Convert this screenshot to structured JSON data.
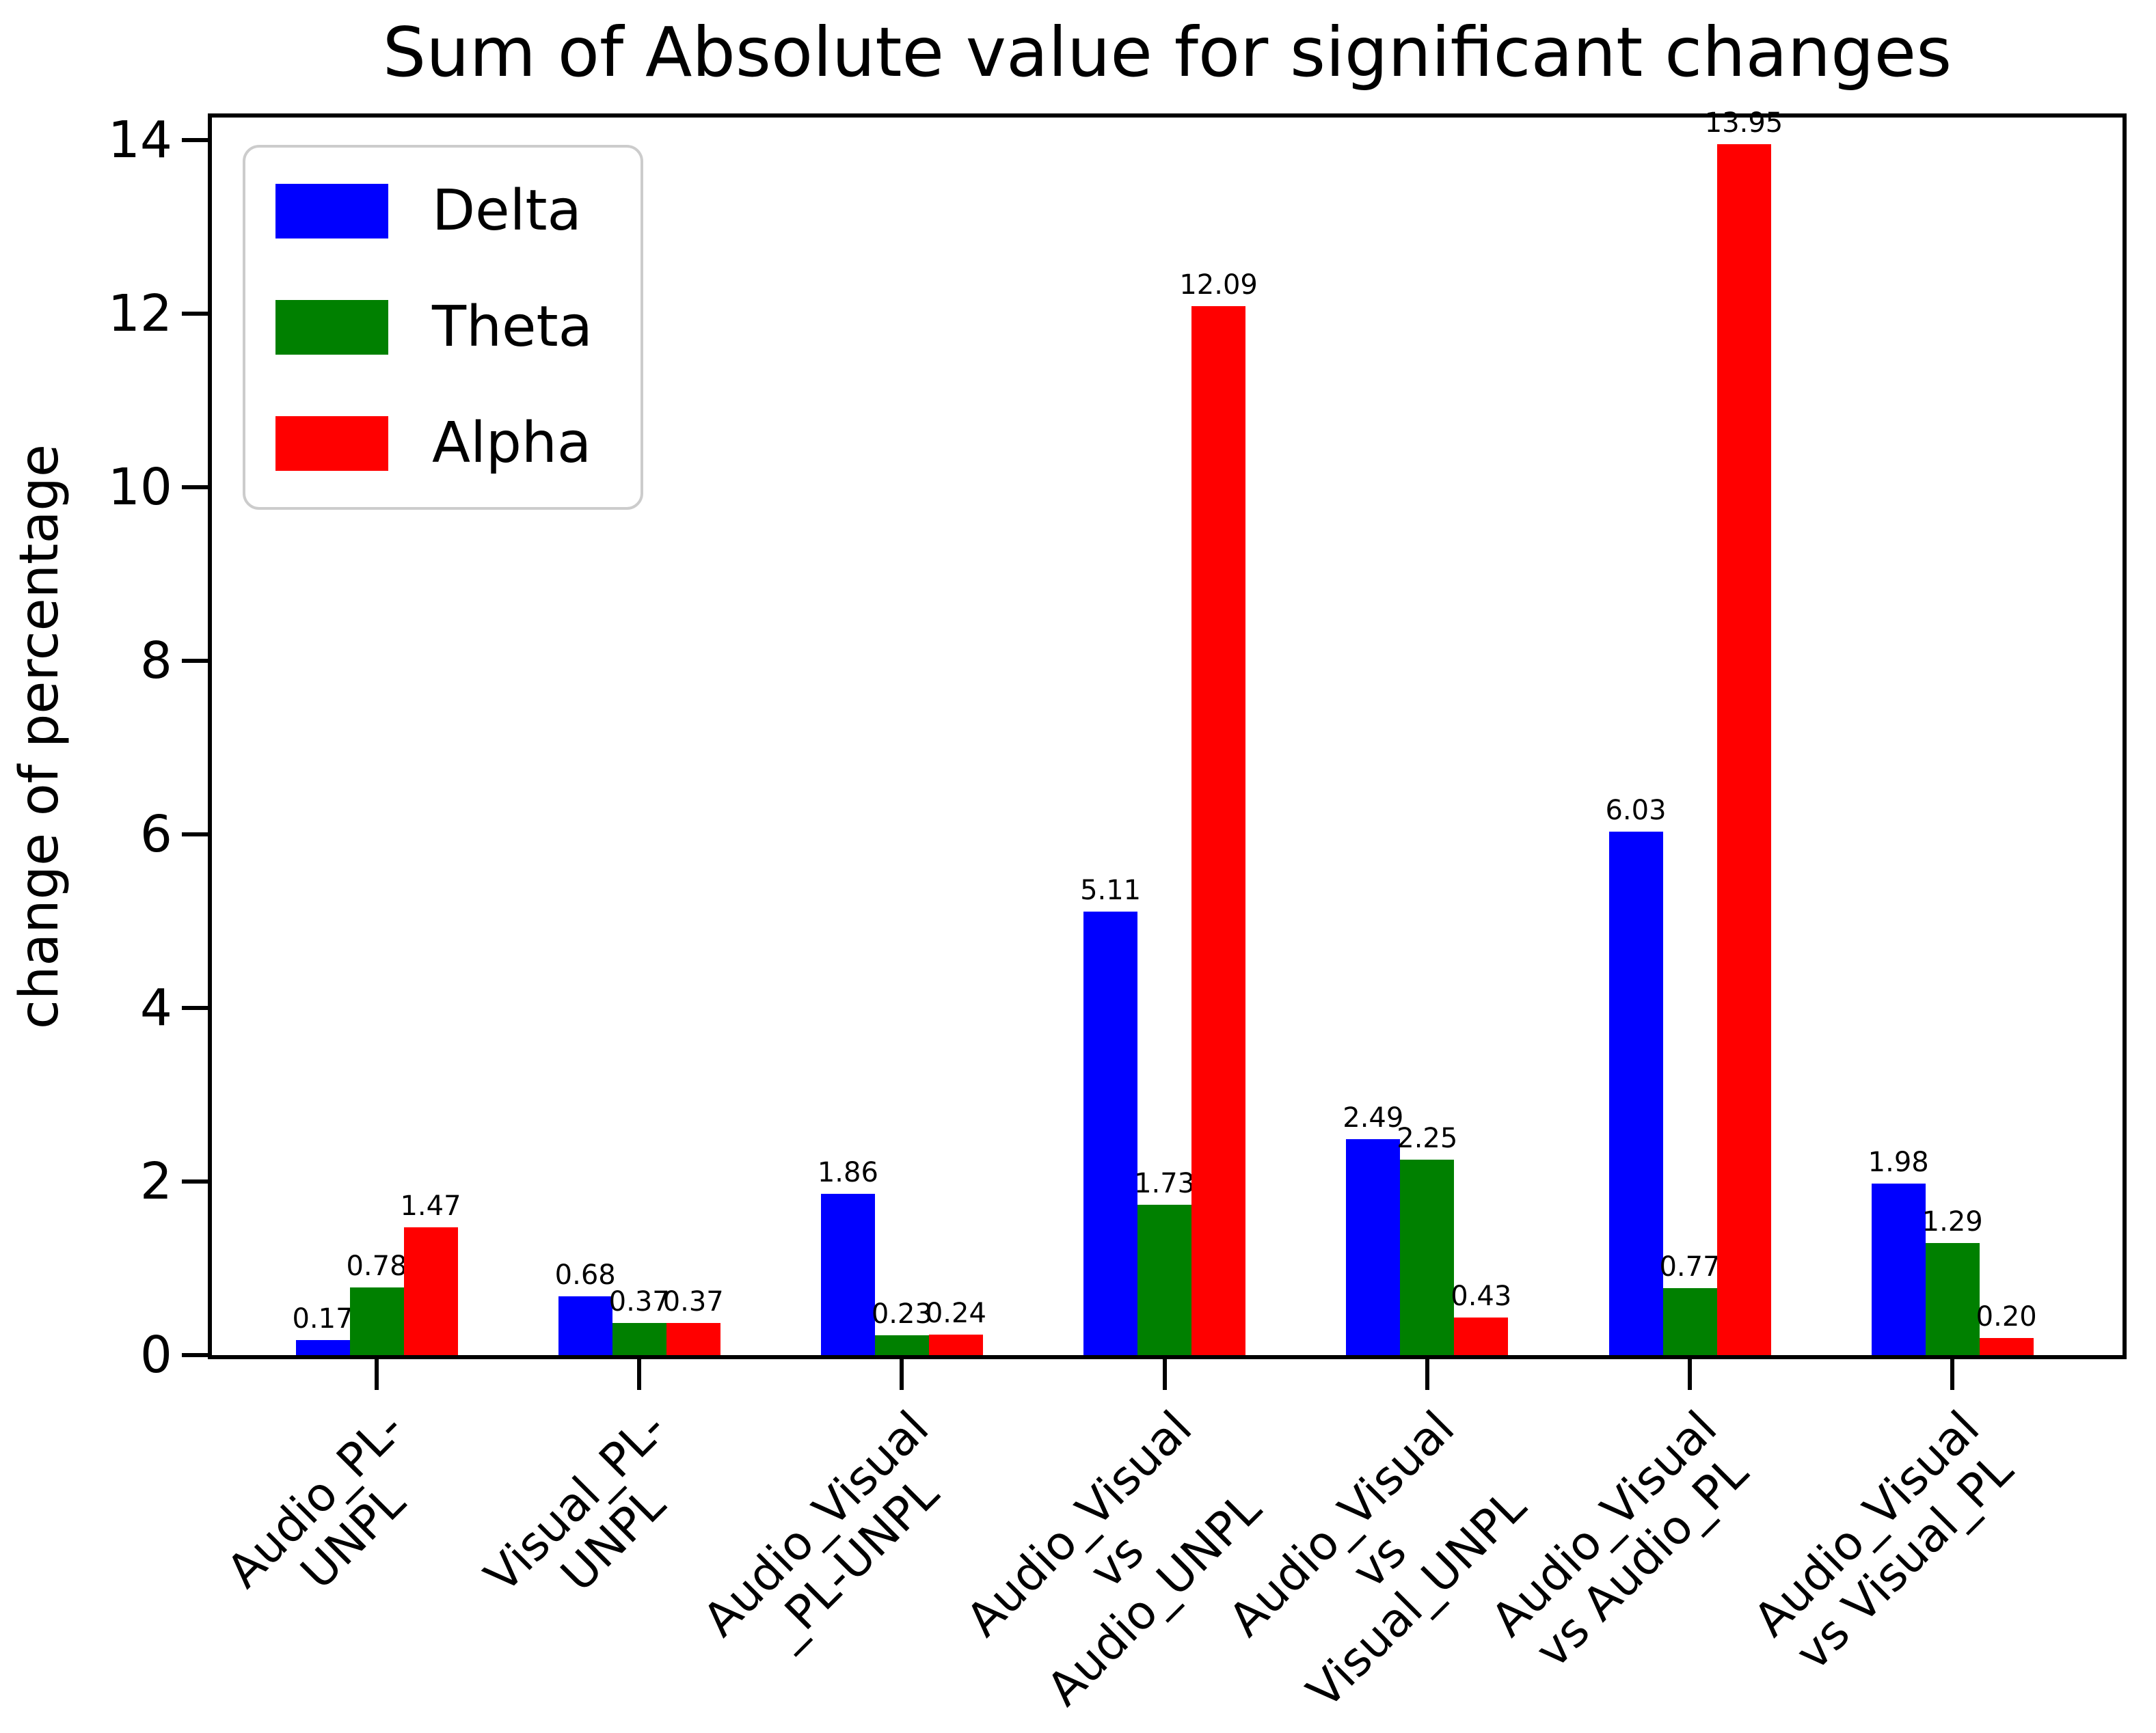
{
  "title": "Sum of Absolute value for significant changes",
  "ylabel": "change of percentage",
  "chart_data": {
    "type": "bar",
    "title": "Sum of Absolute value for significant changes",
    "xlabel": "",
    "ylabel": "change of percentage",
    "categories": [
      "Audio_PL-\nUNPL",
      "Visual_PL-\nUNPL",
      "Audio_Visual\n_PL-UNPL",
      "Audio_Visual\nvs\nAudio_UNPL",
      "Audio_Visual\nvs\nVisual_UNPL",
      "Audio_Visual\nvs Audio_PL",
      "Audio_Visual\nvs Visual_PL"
    ],
    "series": [
      {
        "name": "Delta",
        "color": "#0000ff",
        "values": [
          0.17,
          0.68,
          1.86,
          5.11,
          2.49,
          6.03,
          1.98
        ]
      },
      {
        "name": "Theta",
        "color": "#008000",
        "values": [
          0.78,
          0.37,
          0.23,
          1.73,
          2.25,
          0.77,
          1.29
        ]
      },
      {
        "name": "Alpha",
        "color": "#ff0000",
        "values": [
          1.47,
          0.37,
          0.24,
          12.09,
          0.43,
          13.95,
          0.2
        ]
      }
    ],
    "bar_value_labels_decimals": 2,
    "yticks": [
      0,
      2,
      4,
      6,
      8,
      10,
      12,
      14
    ],
    "ylim": [
      0,
      14.26
    ],
    "grid": false,
    "legend_position": "upper left",
    "axis_color": "#000000",
    "background_color": "#ffffff"
  }
}
